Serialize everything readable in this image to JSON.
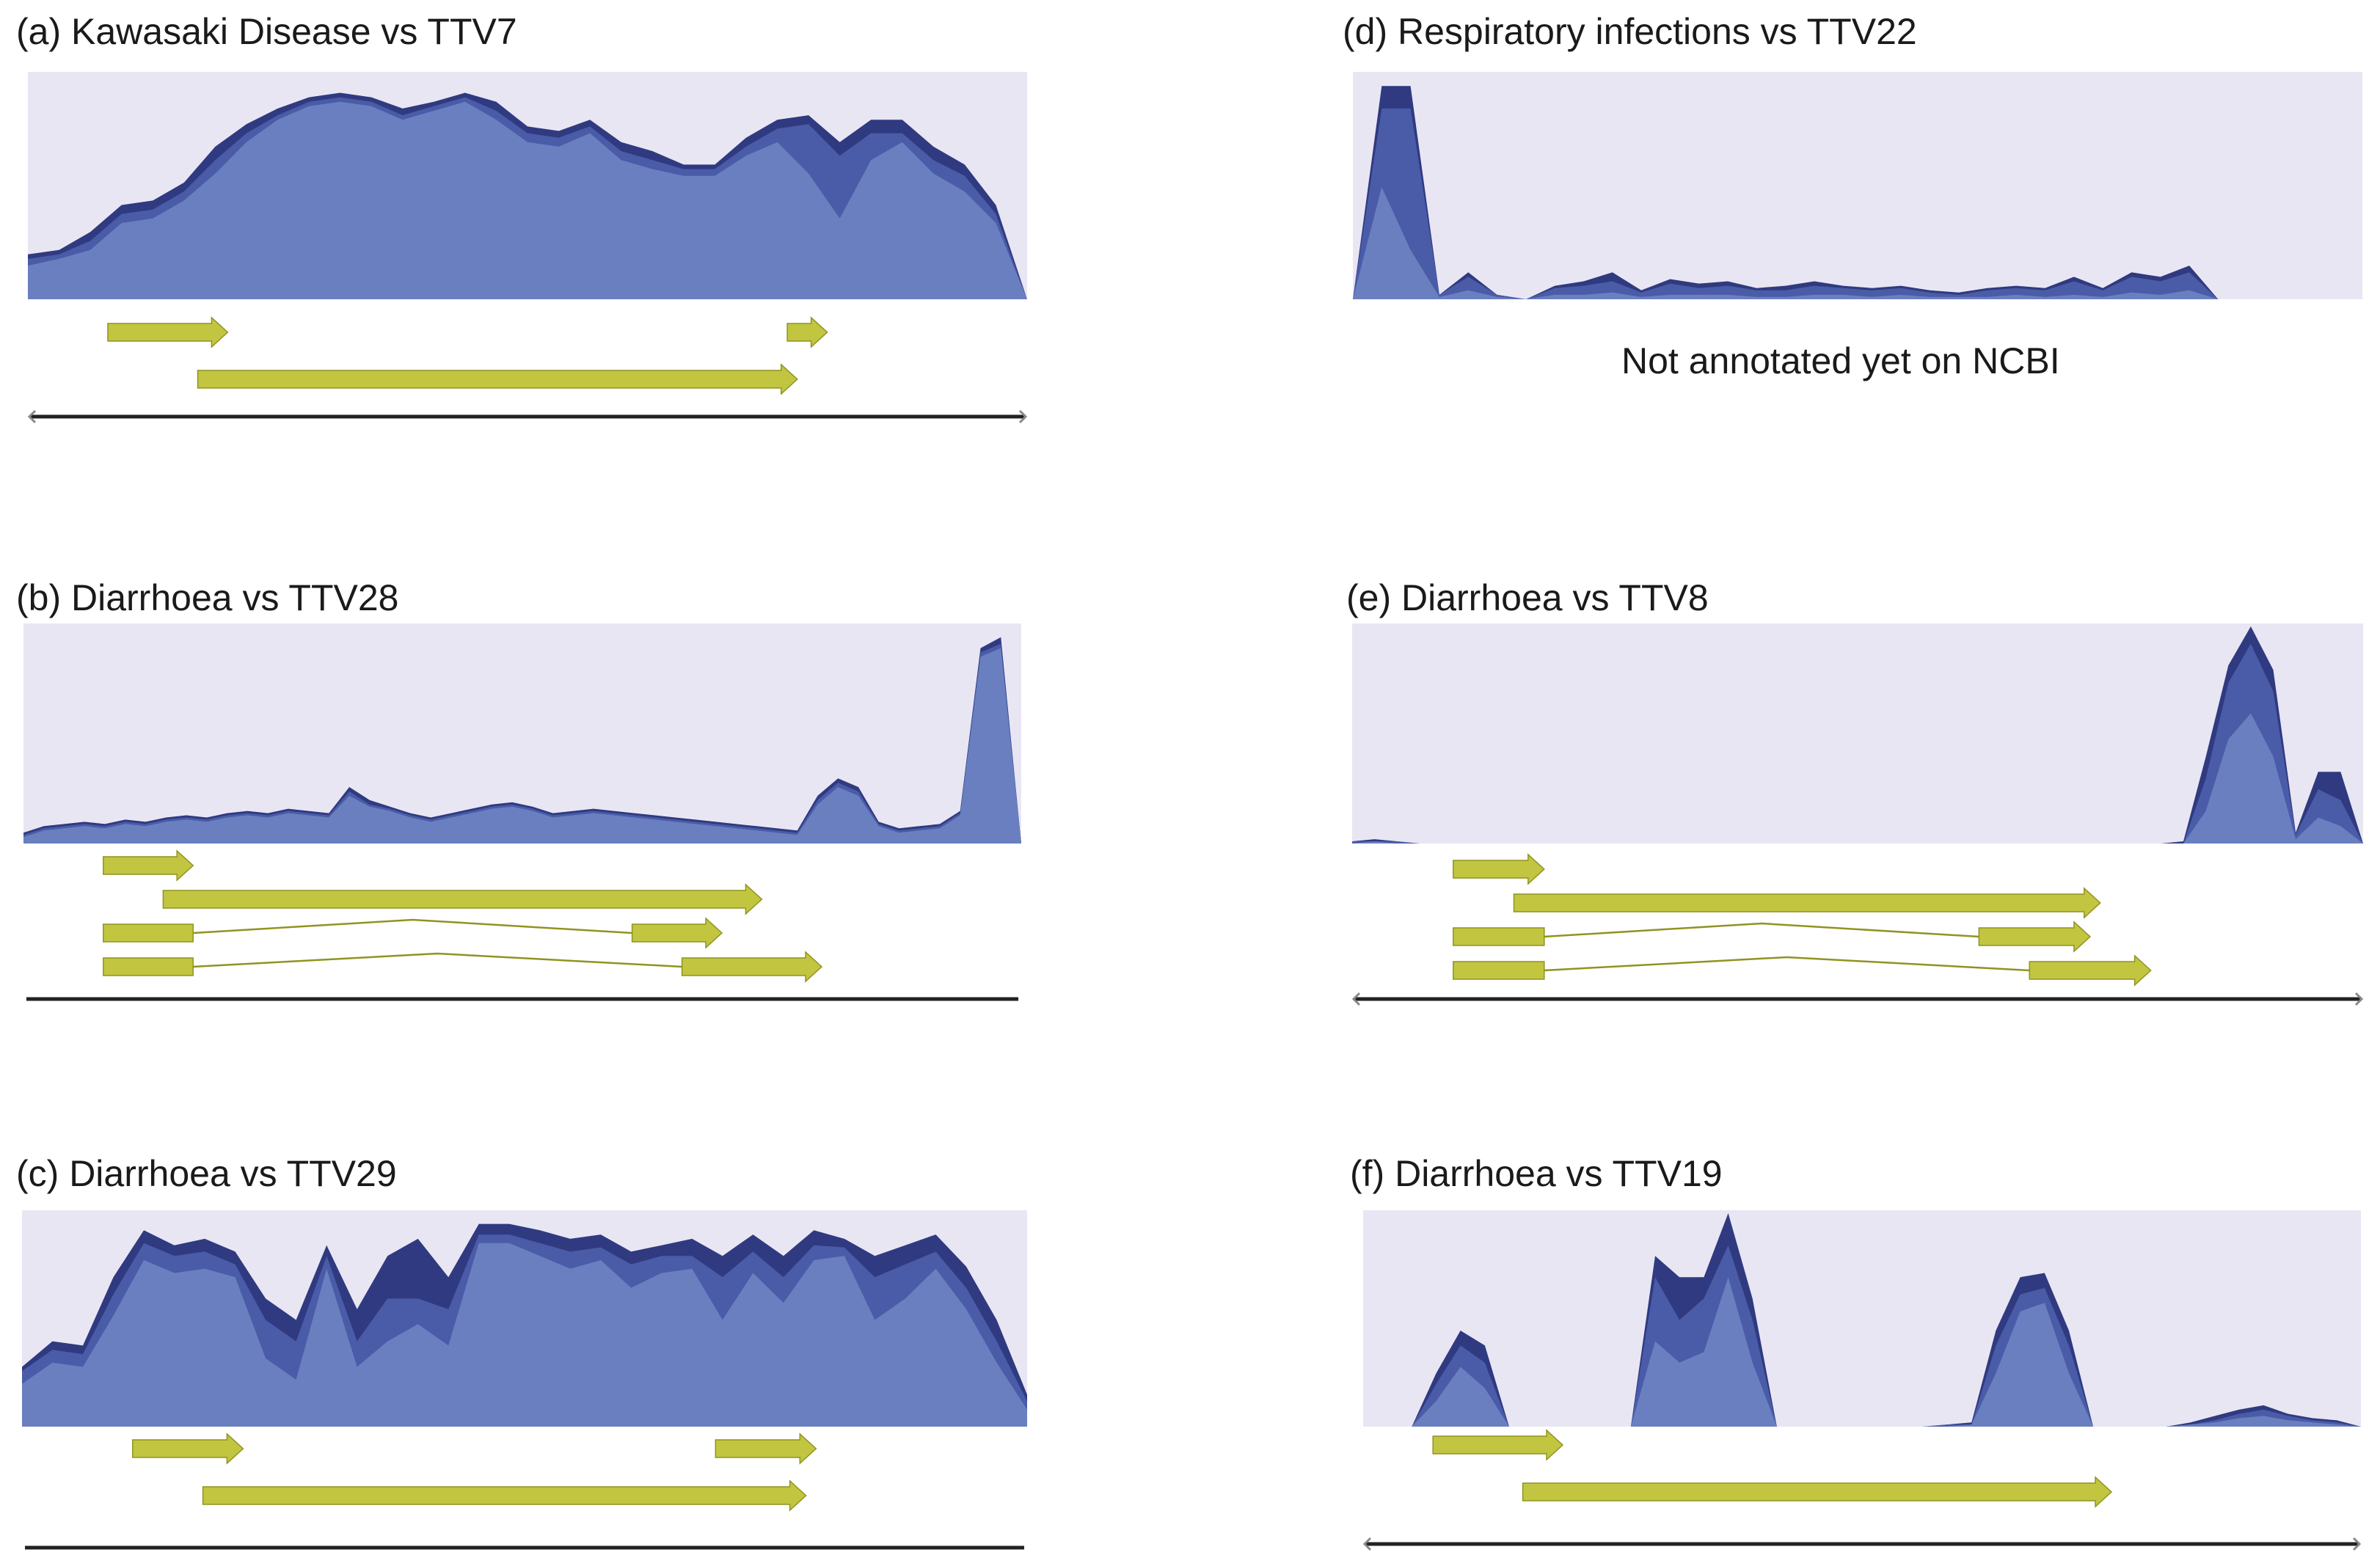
{
  "colors": {
    "background_band": "#e9e6f4",
    "layer_dark": "#2f3a80",
    "layer_mid": "#4a5ba8",
    "layer_light": "#6a7fbf",
    "arrow_fill": "#c2c540",
    "arrow_edge": "#8f9420",
    "axis_line": "#222222"
  },
  "chart_data": [
    {
      "id": "a",
      "type": "area",
      "title": "(a) Kawasaki Disease vs TTV7",
      "ylim": [
        0,
        100
      ],
      "series": [
        {
          "name": "layer-1",
          "values": [
            20,
            22,
            30,
            42,
            44,
            52,
            68,
            78,
            85,
            90,
            92,
            90,
            85,
            88,
            92,
            88,
            77,
            75,
            80,
            70,
            66,
            60,
            60,
            72,
            80,
            82,
            70,
            80,
            80,
            68,
            60,
            42,
            0
          ]
        },
        {
          "name": "layer-2",
          "values": [
            18,
            20,
            26,
            38,
            40,
            48,
            62,
            74,
            82,
            88,
            90,
            88,
            82,
            86,
            90,
            84,
            74,
            72,
            77,
            66,
            62,
            58,
            58,
            68,
            76,
            78,
            64,
            74,
            74,
            62,
            55,
            38,
            0
          ]
        },
        {
          "name": "layer-3",
          "values": [
            15,
            18,
            22,
            34,
            36,
            44,
            56,
            70,
            80,
            86,
            88,
            86,
            80,
            84,
            88,
            80,
            70,
            68,
            74,
            62,
            58,
            55,
            55,
            64,
            70,
            56,
            36,
            62,
            70,
            56,
            48,
            34,
            0
          ]
        }
      ],
      "genes": [
        {
          "start": 0.08,
          "end": 0.2,
          "row": 0
        },
        {
          "start": 0.76,
          "end": 0.8,
          "row": 0
        },
        {
          "start": 0.17,
          "end": 0.77,
          "row": 1
        }
      ],
      "genome_line": "bracket"
    },
    {
      "id": "b",
      "type": "area",
      "title": "(b) Diarrhoea vs TTV28",
      "ylim": [
        0,
        100
      ],
      "series": [
        {
          "name": "layer-1",
          "values": [
            5,
            8,
            9,
            10,
            9,
            11,
            10,
            12,
            13,
            12,
            14,
            15,
            14,
            16,
            15,
            14,
            26,
            20,
            17,
            14,
            12,
            14,
            16,
            18,
            19,
            17,
            14,
            15,
            16,
            15,
            14,
            13,
            12,
            11,
            10,
            9,
            8,
            7,
            6,
            22,
            30,
            26,
            10,
            7,
            8,
            9,
            15,
            90,
            95,
            0
          ]
        },
        {
          "name": "layer-2",
          "values": [
            4,
            7,
            8,
            9,
            8,
            10,
            9,
            11,
            12,
            11,
            13,
            14,
            13,
            15,
            14,
            13,
            24,
            18,
            16,
            13,
            11,
            13,
            15,
            17,
            18,
            16,
            13,
            14,
            15,
            14,
            13,
            12,
            11,
            10,
            9,
            8,
            7,
            6,
            5,
            20,
            28,
            24,
            9,
            6,
            7,
            8,
            14,
            88,
            92,
            0
          ]
        },
        {
          "name": "layer-3",
          "values": [
            3,
            6,
            7,
            8,
            7,
            9,
            8,
            10,
            11,
            10,
            12,
            13,
            12,
            14,
            13,
            12,
            22,
            17,
            15,
            12,
            10,
            12,
            14,
            16,
            17,
            15,
            12,
            13,
            14,
            13,
            12,
            11,
            10,
            9,
            8,
            7,
            6,
            5,
            4,
            18,
            26,
            22,
            8,
            5,
            6,
            7,
            13,
            86,
            90,
            0
          ]
        }
      ],
      "genes": [
        {
          "start": 0.08,
          "end": 0.17,
          "row": 0
        },
        {
          "start": 0.14,
          "end": 0.74,
          "row": 1
        },
        {
          "start": 0.08,
          "end": 0.7,
          "row": 2,
          "spliced": true,
          "split": [
            0.17,
            0.61
          ]
        },
        {
          "start": 0.08,
          "end": 0.8,
          "row": 3,
          "spliced": true,
          "split": [
            0.17,
            0.66
          ]
        }
      ],
      "genome_line": "plain"
    },
    {
      "id": "c",
      "type": "area",
      "title": "(c) Diarrhoea vs TTV29",
      "ylim": [
        0,
        100
      ],
      "series": [
        {
          "name": "layer-1",
          "values": [
            28,
            40,
            38,
            70,
            92,
            85,
            88,
            82,
            60,
            50,
            85,
            55,
            80,
            88,
            70,
            95,
            95,
            92,
            88,
            90,
            82,
            85,
            88,
            80,
            90,
            80,
            92,
            88,
            80,
            85,
            90,
            75,
            50,
            15
          ]
        },
        {
          "name": "layer-2",
          "values": [
            26,
            36,
            34,
            62,
            86,
            80,
            82,
            76,
            50,
            40,
            80,
            40,
            60,
            60,
            55,
            90,
            90,
            86,
            82,
            84,
            76,
            80,
            80,
            70,
            82,
            70,
            85,
            84,
            70,
            76,
            82,
            65,
            40,
            12
          ]
        },
        {
          "name": "layer-3",
          "values": [
            20,
            30,
            28,
            52,
            78,
            72,
            74,
            70,
            32,
            22,
            74,
            28,
            40,
            48,
            38,
            86,
            86,
            80,
            74,
            78,
            65,
            72,
            74,
            50,
            72,
            58,
            78,
            80,
            50,
            60,
            74,
            55,
            30,
            8
          ]
        }
      ],
      "genes": [
        {
          "start": 0.11,
          "end": 0.22,
          "row": 0
        },
        {
          "start": 0.69,
          "end": 0.79,
          "row": 0
        },
        {
          "start": 0.18,
          "end": 0.78,
          "row": 1
        }
      ],
      "genome_line": "plain"
    },
    {
      "id": "d",
      "type": "area",
      "title": "(d) Respiratory infections vs TTV22",
      "ylim": [
        0,
        100
      ],
      "note": "Not annotated yet on NCBI",
      "series": [
        {
          "name": "layer-1",
          "values": [
            0,
            95,
            95,
            2,
            12,
            2,
            0,
            6,
            8,
            12,
            4,
            9,
            7,
            8,
            5,
            6,
            8,
            6,
            5,
            6,
            4,
            3,
            5,
            6,
            5,
            10,
            5,
            12,
            10,
            15,
            0,
            0,
            0,
            0,
            0,
            0
          ]
        },
        {
          "name": "layer-2",
          "values": [
            0,
            85,
            85,
            2,
            10,
            2,
            0,
            5,
            6,
            8,
            3,
            7,
            5,
            6,
            4,
            4,
            6,
            5,
            4,
            5,
            3,
            2,
            4,
            5,
            4,
            8,
            4,
            10,
            8,
            12,
            0,
            0,
            0,
            0,
            0,
            0
          ]
        },
        {
          "name": "layer-3",
          "values": [
            0,
            50,
            22,
            1,
            4,
            1,
            0,
            2,
            2,
            3,
            1,
            2,
            2,
            2,
            1,
            1,
            2,
            2,
            1,
            2,
            1,
            1,
            1,
            2,
            1,
            2,
            1,
            3,
            2,
            4,
            0,
            0,
            0,
            0,
            0,
            0
          ]
        }
      ],
      "genes": [],
      "genome_line": "none"
    },
    {
      "id": "e",
      "type": "area",
      "title": "(e) Diarrhoea vs TTV8",
      "ylim": [
        0,
        100
      ],
      "series": [
        {
          "name": "layer-1",
          "values": [
            1,
            2,
            1,
            0,
            0,
            0,
            0,
            0,
            0,
            0,
            0,
            0,
            0,
            0,
            0,
            0,
            0,
            0,
            0,
            0,
            0,
            0,
            0,
            0,
            0,
            0,
            0,
            0,
            0,
            0,
            0,
            0,
            0,
            0,
            0,
            0,
            0,
            1,
            40,
            82,
            100,
            80,
            5,
            33,
            33,
            0
          ]
        },
        {
          "name": "layer-2",
          "values": [
            1,
            1,
            1,
            0,
            0,
            0,
            0,
            0,
            0,
            0,
            0,
            0,
            0,
            0,
            0,
            0,
            0,
            0,
            0,
            0,
            0,
            0,
            0,
            0,
            0,
            0,
            0,
            0,
            0,
            0,
            0,
            0,
            0,
            0,
            0,
            0,
            0,
            0,
            30,
            74,
            92,
            70,
            4,
            25,
            20,
            0
          ]
        },
        {
          "name": "layer-3",
          "values": [
            0,
            1,
            0,
            0,
            0,
            0,
            0,
            0,
            0,
            0,
            0,
            0,
            0,
            0,
            0,
            0,
            0,
            0,
            0,
            0,
            0,
            0,
            0,
            0,
            0,
            0,
            0,
            0,
            0,
            0,
            0,
            0,
            0,
            0,
            0,
            0,
            0,
            0,
            15,
            48,
            60,
            40,
            2,
            12,
            8,
            0
          ]
        }
      ],
      "genes": [
        {
          "start": 0.1,
          "end": 0.19,
          "row": 0
        },
        {
          "start": 0.16,
          "end": 0.74,
          "row": 1
        },
        {
          "start": 0.1,
          "end": 0.73,
          "row": 2,
          "spliced": true,
          "split": [
            0.19,
            0.62
          ]
        },
        {
          "start": 0.1,
          "end": 0.79,
          "row": 3,
          "spliced": true,
          "split": [
            0.19,
            0.67
          ]
        }
      ],
      "genome_line": "bracket"
    },
    {
      "id": "f",
      "type": "area",
      "title": "(f) Diarrhoea vs TTV19",
      "ylim": [
        0,
        100
      ],
      "series": [
        {
          "name": "layer-1",
          "values": [
            0,
            0,
            0,
            25,
            45,
            38,
            0,
            0,
            0,
            0,
            0,
            0,
            80,
            70,
            70,
            100,
            60,
            0,
            0,
            0,
            0,
            0,
            0,
            0,
            1,
            2,
            45,
            70,
            72,
            45,
            0,
            0,
            0,
            0,
            2,
            5,
            8,
            10,
            6,
            4,
            3,
            0
          ]
        },
        {
          "name": "layer-2",
          "values": [
            0,
            0,
            0,
            20,
            38,
            30,
            0,
            0,
            0,
            0,
            0,
            0,
            70,
            50,
            60,
            85,
            50,
            0,
            0,
            0,
            0,
            0,
            0,
            0,
            1,
            1,
            38,
            62,
            65,
            38,
            0,
            0,
            0,
            0,
            1,
            3,
            6,
            8,
            5,
            3,
            2,
            0
          ]
        },
        {
          "name": "layer-3",
          "values": [
            0,
            0,
            0,
            12,
            28,
            18,
            0,
            0,
            0,
            0,
            0,
            0,
            40,
            30,
            35,
            70,
            30,
            0,
            0,
            0,
            0,
            0,
            0,
            0,
            0,
            1,
            25,
            54,
            58,
            25,
            0,
            0,
            0,
            0,
            1,
            2,
            4,
            5,
            3,
            2,
            1,
            0
          ]
        }
      ],
      "genes": [
        {
          "start": 0.07,
          "end": 0.2,
          "row": 0
        },
        {
          "start": 0.16,
          "end": 0.75,
          "row": 1
        }
      ],
      "genome_line": "bracket"
    }
  ]
}
